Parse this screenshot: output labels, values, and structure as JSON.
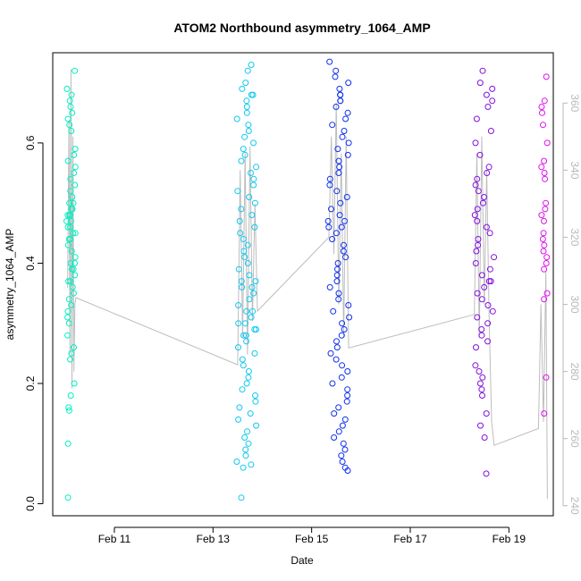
{
  "chart_data": {
    "type": "scatter",
    "title": "ATOM2 Northbound asymmetry_1064_AMP",
    "xlabel": "Date",
    "ylabel": "asymmetry_1064_AMP",
    "x_tick_labels": [
      "Feb 11",
      "Feb 13",
      "Feb 15",
      "Feb 17",
      "Feb 19"
    ],
    "x_tick_values": [
      11,
      13,
      15,
      17,
      19
    ],
    "xlim": [
      9.75,
      19.9
    ],
    "ylim": [
      -0.02,
      0.75
    ],
    "y_ticks": [
      0.0,
      0.2,
      0.4,
      0.6
    ],
    "y_tick_labels": [
      "0.0",
      "0.2",
      "0.4",
      "0.6"
    ],
    "y2_label": "",
    "y2_lim": [
      237,
      375
    ],
    "y2_ticks": [
      240,
      260,
      280,
      300,
      320,
      340,
      360
    ],
    "colors": {
      "overlay_line": "#bdbdbd",
      "axis_right": "#b8b8b8",
      "clusters": [
        "#00f0c0",
        "#10c8f0",
        "#1030f0",
        "#8010e0",
        "#e010f0"
      ]
    },
    "series": [
      {
        "x_center": 10.12,
        "x_spread": 0.09,
        "color": "#00f0c0",
        "values": [
          0.72,
          0.69,
          0.68,
          0.67,
          0.66,
          0.65,
          0.64,
          0.63,
          0.62,
          0.59,
          0.58,
          0.57,
          0.56,
          0.55,
          0.54,
          0.53,
          0.52,
          0.51,
          0.5,
          0.5,
          0.49,
          0.49,
          0.48,
          0.48,
          0.48,
          0.47,
          0.47,
          0.46,
          0.46,
          0.45,
          0.45,
          0.44,
          0.44,
          0.43,
          0.42,
          0.41,
          0.4,
          0.4,
          0.39,
          0.39,
          0.38,
          0.37,
          0.37,
          0.36,
          0.35,
          0.34,
          0.33,
          0.32,
          0.31,
          0.3,
          0.28,
          0.26,
          0.25,
          0.24,
          0.2,
          0.18,
          0.16,
          0.155,
          0.1,
          0.01
        ]
      },
      {
        "x_center": 13.68,
        "x_spread": 0.2,
        "color": "#10c8f0",
        "values": [
          0.73,
          0.72,
          0.7,
          0.69,
          0.68,
          0.68,
          0.67,
          0.66,
          0.65,
          0.64,
          0.63,
          0.62,
          0.61,
          0.6,
          0.59,
          0.58,
          0.57,
          0.56,
          0.55,
          0.54,
          0.53,
          0.52,
          0.51,
          0.5,
          0.49,
          0.48,
          0.47,
          0.46,
          0.45,
          0.44,
          0.43,
          0.42,
          0.41,
          0.4,
          0.39,
          0.38,
          0.37,
          0.37,
          0.36,
          0.36,
          0.35,
          0.34,
          0.33,
          0.32,
          0.32,
          0.31,
          0.3,
          0.3,
          0.29,
          0.29,
          0.28,
          0.28,
          0.27,
          0.26,
          0.25,
          0.24,
          0.23,
          0.22,
          0.21,
          0.2,
          0.19,
          0.18,
          0.17,
          0.16,
          0.15,
          0.14,
          0.13,
          0.12,
          0.11,
          0.1,
          0.09,
          0.08,
          0.07,
          0.065,
          0.06,
          0.01
        ]
      },
      {
        "x_center": 15.55,
        "x_spread": 0.22,
        "color": "#1030f0",
        "values": [
          0.735,
          0.72,
          0.71,
          0.7,
          0.69,
          0.68,
          0.68,
          0.67,
          0.67,
          0.66,
          0.65,
          0.64,
          0.63,
          0.62,
          0.61,
          0.6,
          0.59,
          0.58,
          0.57,
          0.56,
          0.55,
          0.54,
          0.53,
          0.52,
          0.51,
          0.5,
          0.49,
          0.48,
          0.47,
          0.47,
          0.46,
          0.46,
          0.45,
          0.44,
          0.43,
          0.42,
          0.41,
          0.4,
          0.39,
          0.38,
          0.37,
          0.36,
          0.35,
          0.34,
          0.33,
          0.32,
          0.31,
          0.3,
          0.29,
          0.28,
          0.27,
          0.26,
          0.25,
          0.24,
          0.23,
          0.22,
          0.21,
          0.2,
          0.19,
          0.18,
          0.17,
          0.16,
          0.15,
          0.14,
          0.13,
          0.12,
          0.11,
          0.1,
          0.09,
          0.08,
          0.07,
          0.06,
          0.055
        ]
      },
      {
        "x_center": 18.5,
        "x_spread": 0.2,
        "color": "#8010e0",
        "values": [
          0.72,
          0.7,
          0.69,
          0.68,
          0.67,
          0.66,
          0.64,
          0.62,
          0.6,
          0.58,
          0.56,
          0.55,
          0.54,
          0.53,
          0.52,
          0.51,
          0.5,
          0.49,
          0.48,
          0.47,
          0.46,
          0.45,
          0.44,
          0.43,
          0.42,
          0.41,
          0.4,
          0.39,
          0.38,
          0.37,
          0.37,
          0.36,
          0.35,
          0.34,
          0.33,
          0.32,
          0.31,
          0.3,
          0.29,
          0.28,
          0.27,
          0.26,
          0.23,
          0.22,
          0.21,
          0.2,
          0.19,
          0.18,
          0.15,
          0.13,
          0.11,
          0.05
        ]
      },
      {
        "x_center": 19.72,
        "x_spread": 0.06,
        "color": "#e010f0",
        "values": [
          0.71,
          0.67,
          0.66,
          0.65,
          0.63,
          0.6,
          0.57,
          0.56,
          0.55,
          0.54,
          0.5,
          0.49,
          0.48,
          0.47,
          0.45,
          0.44,
          0.43,
          0.42,
          0.41,
          0.4,
          0.39,
          0.35,
          0.34,
          0.21,
          0.15
        ]
      }
    ],
    "overlay_line": {
      "color": "#bdbdbd",
      "x": [
        10.05,
        10.08,
        10.1,
        10.12,
        10.14,
        10.16,
        10.18,
        10.2,
        10.22,
        13.5,
        13.55,
        13.6,
        13.65,
        13.7,
        13.75,
        13.8,
        13.85,
        13.9,
        15.35,
        15.4,
        15.45,
        15.5,
        15.55,
        15.6,
        15.65,
        15.7,
        15.75,
        18.3,
        18.35,
        18.4,
        18.45,
        18.5,
        18.55,
        18.6,
        18.65,
        18.7,
        19.6,
        19.65,
        19.7,
        19.75,
        19.78
      ],
      "y": [
        305,
        355,
        285,
        370,
        275,
        350,
        280,
        300,
        302,
        282,
        340,
        290,
        345,
        285,
        347,
        295,
        330,
        298,
        320,
        350,
        315,
        360,
        300,
        345,
        290,
        350,
        287,
        297,
        345,
        290,
        350,
        300,
        340,
        295,
        265,
        258,
        263,
        300,
        265,
        310,
        242
      ],
      "y_axis": "right"
    }
  }
}
